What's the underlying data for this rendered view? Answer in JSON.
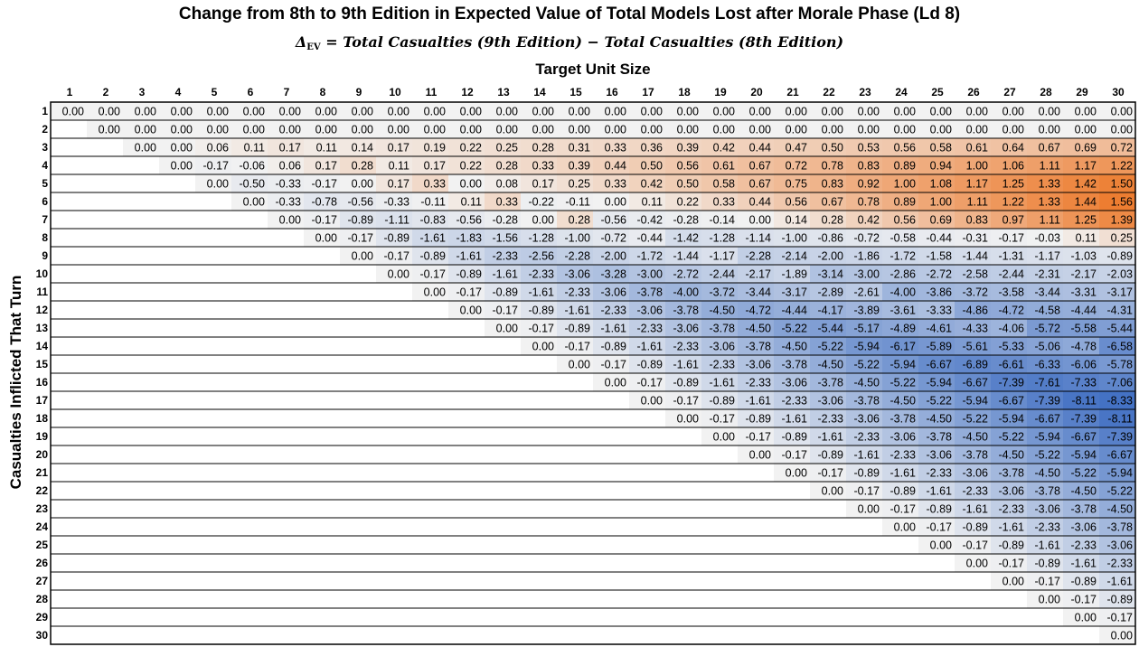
{
  "chart_data": {
    "type": "heatmap",
    "title": "Change from 8th to 9th Edition in Expected Value of Total Models Lost after Morale Phase (Ld 8)",
    "subtitle": {
      "delta_symbol": "Δ",
      "delta_subscript": "EV",
      "formula": " = Total Casualties (9th Edition) − Total Casualties (8th Edition)"
    },
    "xlabel": "Target Unit Size",
    "ylabel": "Casualties Inflicted That Turn",
    "x_categories": [
      "1",
      "2",
      "3",
      "4",
      "5",
      "6",
      "7",
      "8",
      "9",
      "10",
      "11",
      "12",
      "13",
      "14",
      "15",
      "16",
      "17",
      "18",
      "19",
      "20",
      "21",
      "22",
      "23",
      "24",
      "25",
      "26",
      "27",
      "28",
      "29",
      "30"
    ],
    "y_categories": [
      "1",
      "2",
      "3",
      "4",
      "5",
      "6",
      "7",
      "8",
      "9",
      "10",
      "11",
      "12",
      "13",
      "14",
      "15",
      "16",
      "17",
      "18",
      "19",
      "20",
      "21",
      "22",
      "23",
      "24",
      "25",
      "26",
      "27",
      "28",
      "29",
      "30"
    ],
    "color_scale": {
      "negative_extreme": "#4472C4",
      "midpoint": "#F2F2F2",
      "positive_extreme": "#ED7D31",
      "min": -8.33,
      "max": 1.56
    },
    "values": [
      [
        "0.00",
        "0.00",
        "0.00",
        "0.00",
        "0.00",
        "0.00",
        "0.00",
        "0.00",
        "0.00",
        "0.00",
        "0.00",
        "0.00",
        "0.00",
        "0.00",
        "0.00",
        "0.00",
        "0.00",
        "0.00",
        "0.00",
        "0.00",
        "0.00",
        "0.00",
        "0.00",
        "0.00",
        "0.00",
        "0.00",
        "0.00",
        "0.00",
        "0.00",
        "0.00"
      ],
      [
        null,
        "0.00",
        "0.00",
        "0.00",
        "0.00",
        "0.00",
        "0.00",
        "0.00",
        "0.00",
        "0.00",
        "0.00",
        "0.00",
        "0.00",
        "0.00",
        "0.00",
        "0.00",
        "0.00",
        "0.00",
        "0.00",
        "0.00",
        "0.00",
        "0.00",
        "0.00",
        "0.00",
        "0.00",
        "0.00",
        "0.00",
        "0.00",
        "0.00",
        "0.00"
      ],
      [
        null,
        null,
        "0.00",
        "0.00",
        "0.06",
        "0.11",
        "0.17",
        "0.11",
        "0.14",
        "0.17",
        "0.19",
        "0.22",
        "0.25",
        "0.28",
        "0.31",
        "0.33",
        "0.36",
        "0.39",
        "0.42",
        "0.44",
        "0.47",
        "0.50",
        "0.53",
        "0.56",
        "0.58",
        "0.61",
        "0.64",
        "0.67",
        "0.69",
        "0.72"
      ],
      [
        null,
        null,
        null,
        "0.00",
        "-0.17",
        "-0.06",
        "0.06",
        "0.17",
        "0.28",
        "0.11",
        "0.17",
        "0.22",
        "0.28",
        "0.33",
        "0.39",
        "0.44",
        "0.50",
        "0.56",
        "0.61",
        "0.67",
        "0.72",
        "0.78",
        "0.83",
        "0.89",
        "0.94",
        "1.00",
        "1.06",
        "1.11",
        "1.17",
        "1.22"
      ],
      [
        null,
        null,
        null,
        null,
        "0.00",
        "-0.50",
        "-0.33",
        "-0.17",
        "0.00",
        "0.17",
        "0.33",
        "0.00",
        "0.08",
        "0.17",
        "0.25",
        "0.33",
        "0.42",
        "0.50",
        "0.58",
        "0.67",
        "0.75",
        "0.83",
        "0.92",
        "1.00",
        "1.08",
        "1.17",
        "1.25",
        "1.33",
        "1.42",
        "1.50"
      ],
      [
        null,
        null,
        null,
        null,
        null,
        "0.00",
        "-0.33",
        "-0.78",
        "-0.56",
        "-0.33",
        "-0.11",
        "0.11",
        "0.33",
        "-0.22",
        "-0.11",
        "0.00",
        "0.11",
        "0.22",
        "0.33",
        "0.44",
        "0.56",
        "0.67",
        "0.78",
        "0.89",
        "1.00",
        "1.11",
        "1.22",
        "1.33",
        "1.44",
        "1.56"
      ],
      [
        null,
        null,
        null,
        null,
        null,
        null,
        "0.00",
        "-0.17",
        "-0.89",
        "-1.11",
        "-0.83",
        "-0.56",
        "-0.28",
        "0.00",
        "0.28",
        "-0.56",
        "-0.42",
        "-0.28",
        "-0.14",
        "0.00",
        "0.14",
        "0.28",
        "0.42",
        "0.56",
        "0.69",
        "0.83",
        "0.97",
        "1.11",
        "1.25",
        "1.39"
      ],
      [
        null,
        null,
        null,
        null,
        null,
        null,
        null,
        "0.00",
        "-0.17",
        "-0.89",
        "-1.61",
        "-1.83",
        "-1.56",
        "-1.28",
        "-1.00",
        "-0.72",
        "-0.44",
        "-1.42",
        "-1.28",
        "-1.14",
        "-1.00",
        "-0.86",
        "-0.72",
        "-0.58",
        "-0.44",
        "-0.31",
        "-0.17",
        "-0.03",
        "0.11",
        "0.25"
      ],
      [
        null,
        null,
        null,
        null,
        null,
        null,
        null,
        null,
        "0.00",
        "-0.17",
        "-0.89",
        "-1.61",
        "-2.33",
        "-2.56",
        "-2.28",
        "-2.00",
        "-1.72",
        "-1.44",
        "-1.17",
        "-2.28",
        "-2.14",
        "-2.00",
        "-1.86",
        "-1.72",
        "-1.58",
        "-1.44",
        "-1.31",
        "-1.17",
        "-1.03",
        "-0.89"
      ],
      [
        null,
        null,
        null,
        null,
        null,
        null,
        null,
        null,
        null,
        "0.00",
        "-0.17",
        "-0.89",
        "-1.61",
        "-2.33",
        "-3.06",
        "-3.28",
        "-3.00",
        "-2.72",
        "-2.44",
        "-2.17",
        "-1.89",
        "-3.14",
        "-3.00",
        "-2.86",
        "-2.72",
        "-2.58",
        "-2.44",
        "-2.31",
        "-2.17",
        "-2.03"
      ],
      [
        null,
        null,
        null,
        null,
        null,
        null,
        null,
        null,
        null,
        null,
        "0.00",
        "-0.17",
        "-0.89",
        "-1.61",
        "-2.33",
        "-3.06",
        "-3.78",
        "-4.00",
        "-3.72",
        "-3.44",
        "-3.17",
        "-2.89",
        "-2.61",
        "-4.00",
        "-3.86",
        "-3.72",
        "-3.58",
        "-3.44",
        "-3.31",
        "-3.17"
      ],
      [
        null,
        null,
        null,
        null,
        null,
        null,
        null,
        null,
        null,
        null,
        null,
        "0.00",
        "-0.17",
        "-0.89",
        "-1.61",
        "-2.33",
        "-3.06",
        "-3.78",
        "-4.50",
        "-4.72",
        "-4.44",
        "-4.17",
        "-3.89",
        "-3.61",
        "-3.33",
        "-4.86",
        "-4.72",
        "-4.58",
        "-4.44",
        "-4.31"
      ],
      [
        null,
        null,
        null,
        null,
        null,
        null,
        null,
        null,
        null,
        null,
        null,
        null,
        "0.00",
        "-0.17",
        "-0.89",
        "-1.61",
        "-2.33",
        "-3.06",
        "-3.78",
        "-4.50",
        "-5.22",
        "-5.44",
        "-5.17",
        "-4.89",
        "-4.61",
        "-4.33",
        "-4.06",
        "-5.72",
        "-5.58",
        "-5.44"
      ],
      [
        null,
        null,
        null,
        null,
        null,
        null,
        null,
        null,
        null,
        null,
        null,
        null,
        null,
        "0.00",
        "-0.17",
        "-0.89",
        "-1.61",
        "-2.33",
        "-3.06",
        "-3.78",
        "-4.50",
        "-5.22",
        "-5.94",
        "-6.17",
        "-5.89",
        "-5.61",
        "-5.33",
        "-5.06",
        "-4.78",
        "-6.58"
      ],
      [
        null,
        null,
        null,
        null,
        null,
        null,
        null,
        null,
        null,
        null,
        null,
        null,
        null,
        null,
        "0.00",
        "-0.17",
        "-0.89",
        "-1.61",
        "-2.33",
        "-3.06",
        "-3.78",
        "-4.50",
        "-5.22",
        "-5.94",
        "-6.67",
        "-6.89",
        "-6.61",
        "-6.33",
        "-6.06",
        "-5.78"
      ],
      [
        null,
        null,
        null,
        null,
        null,
        null,
        null,
        null,
        null,
        null,
        null,
        null,
        null,
        null,
        null,
        "0.00",
        "-0.17",
        "-0.89",
        "-1.61",
        "-2.33",
        "-3.06",
        "-3.78",
        "-4.50",
        "-5.22",
        "-5.94",
        "-6.67",
        "-7.39",
        "-7.61",
        "-7.33",
        "-7.06"
      ],
      [
        null,
        null,
        null,
        null,
        null,
        null,
        null,
        null,
        null,
        null,
        null,
        null,
        null,
        null,
        null,
        null,
        "0.00",
        "-0.17",
        "-0.89",
        "-1.61",
        "-2.33",
        "-3.06",
        "-3.78",
        "-4.50",
        "-5.22",
        "-5.94",
        "-6.67",
        "-7.39",
        "-8.11",
        "-8.33"
      ],
      [
        null,
        null,
        null,
        null,
        null,
        null,
        null,
        null,
        null,
        null,
        null,
        null,
        null,
        null,
        null,
        null,
        null,
        "0.00",
        "-0.17",
        "-0.89",
        "-1.61",
        "-2.33",
        "-3.06",
        "-3.78",
        "-4.50",
        "-5.22",
        "-5.94",
        "-6.67",
        "-7.39",
        "-8.11"
      ],
      [
        null,
        null,
        null,
        null,
        null,
        null,
        null,
        null,
        null,
        null,
        null,
        null,
        null,
        null,
        null,
        null,
        null,
        null,
        "0.00",
        "-0.17",
        "-0.89",
        "-1.61",
        "-2.33",
        "-3.06",
        "-3.78",
        "-4.50",
        "-5.22",
        "-5.94",
        "-6.67",
        "-7.39"
      ],
      [
        null,
        null,
        null,
        null,
        null,
        null,
        null,
        null,
        null,
        null,
        null,
        null,
        null,
        null,
        null,
        null,
        null,
        null,
        null,
        "0.00",
        "-0.17",
        "-0.89",
        "-1.61",
        "-2.33",
        "-3.06",
        "-3.78",
        "-4.50",
        "-5.22",
        "-5.94",
        "-6.67"
      ],
      [
        null,
        null,
        null,
        null,
        null,
        null,
        null,
        null,
        null,
        null,
        null,
        null,
        null,
        null,
        null,
        null,
        null,
        null,
        null,
        null,
        "0.00",
        "-0.17",
        "-0.89",
        "-1.61",
        "-2.33",
        "-3.06",
        "-3.78",
        "-4.50",
        "-5.22",
        "-5.94"
      ],
      [
        null,
        null,
        null,
        null,
        null,
        null,
        null,
        null,
        null,
        null,
        null,
        null,
        null,
        null,
        null,
        null,
        null,
        null,
        null,
        null,
        null,
        "0.00",
        "-0.17",
        "-0.89",
        "-1.61",
        "-2.33",
        "-3.06",
        "-3.78",
        "-4.50",
        "-5.22"
      ],
      [
        null,
        null,
        null,
        null,
        null,
        null,
        null,
        null,
        null,
        null,
        null,
        null,
        null,
        null,
        null,
        null,
        null,
        null,
        null,
        null,
        null,
        null,
        "0.00",
        "-0.17",
        "-0.89",
        "-1.61",
        "-2.33",
        "-3.06",
        "-3.78",
        "-4.50"
      ],
      [
        null,
        null,
        null,
        null,
        null,
        null,
        null,
        null,
        null,
        null,
        null,
        null,
        null,
        null,
        null,
        null,
        null,
        null,
        null,
        null,
        null,
        null,
        null,
        "0.00",
        "-0.17",
        "-0.89",
        "-1.61",
        "-2.33",
        "-3.06",
        "-3.78"
      ],
      [
        null,
        null,
        null,
        null,
        null,
        null,
        null,
        null,
        null,
        null,
        null,
        null,
        null,
        null,
        null,
        null,
        null,
        null,
        null,
        null,
        null,
        null,
        null,
        null,
        "0.00",
        "-0.17",
        "-0.89",
        "-1.61",
        "-2.33",
        "-3.06"
      ],
      [
        null,
        null,
        null,
        null,
        null,
        null,
        null,
        null,
        null,
        null,
        null,
        null,
        null,
        null,
        null,
        null,
        null,
        null,
        null,
        null,
        null,
        null,
        null,
        null,
        null,
        "0.00",
        "-0.17",
        "-0.89",
        "-1.61",
        "-2.33"
      ],
      [
        null,
        null,
        null,
        null,
        null,
        null,
        null,
        null,
        null,
        null,
        null,
        null,
        null,
        null,
        null,
        null,
        null,
        null,
        null,
        null,
        null,
        null,
        null,
        null,
        null,
        null,
        "0.00",
        "-0.17",
        "-0.89",
        "-1.61"
      ],
      [
        null,
        null,
        null,
        null,
        null,
        null,
        null,
        null,
        null,
        null,
        null,
        null,
        null,
        null,
        null,
        null,
        null,
        null,
        null,
        null,
        null,
        null,
        null,
        null,
        null,
        null,
        null,
        "0.00",
        "-0.17",
        "-0.89"
      ],
      [
        null,
        null,
        null,
        null,
        null,
        null,
        null,
        null,
        null,
        null,
        null,
        null,
        null,
        null,
        null,
        null,
        null,
        null,
        null,
        null,
        null,
        null,
        null,
        null,
        null,
        null,
        null,
        null,
        "0.00",
        "-0.17"
      ],
      [
        null,
        null,
        null,
        null,
        null,
        null,
        null,
        null,
        null,
        null,
        null,
        null,
        null,
        null,
        null,
        null,
        null,
        null,
        null,
        null,
        null,
        null,
        null,
        null,
        null,
        null,
        null,
        null,
        null,
        "0.00"
      ]
    ]
  }
}
